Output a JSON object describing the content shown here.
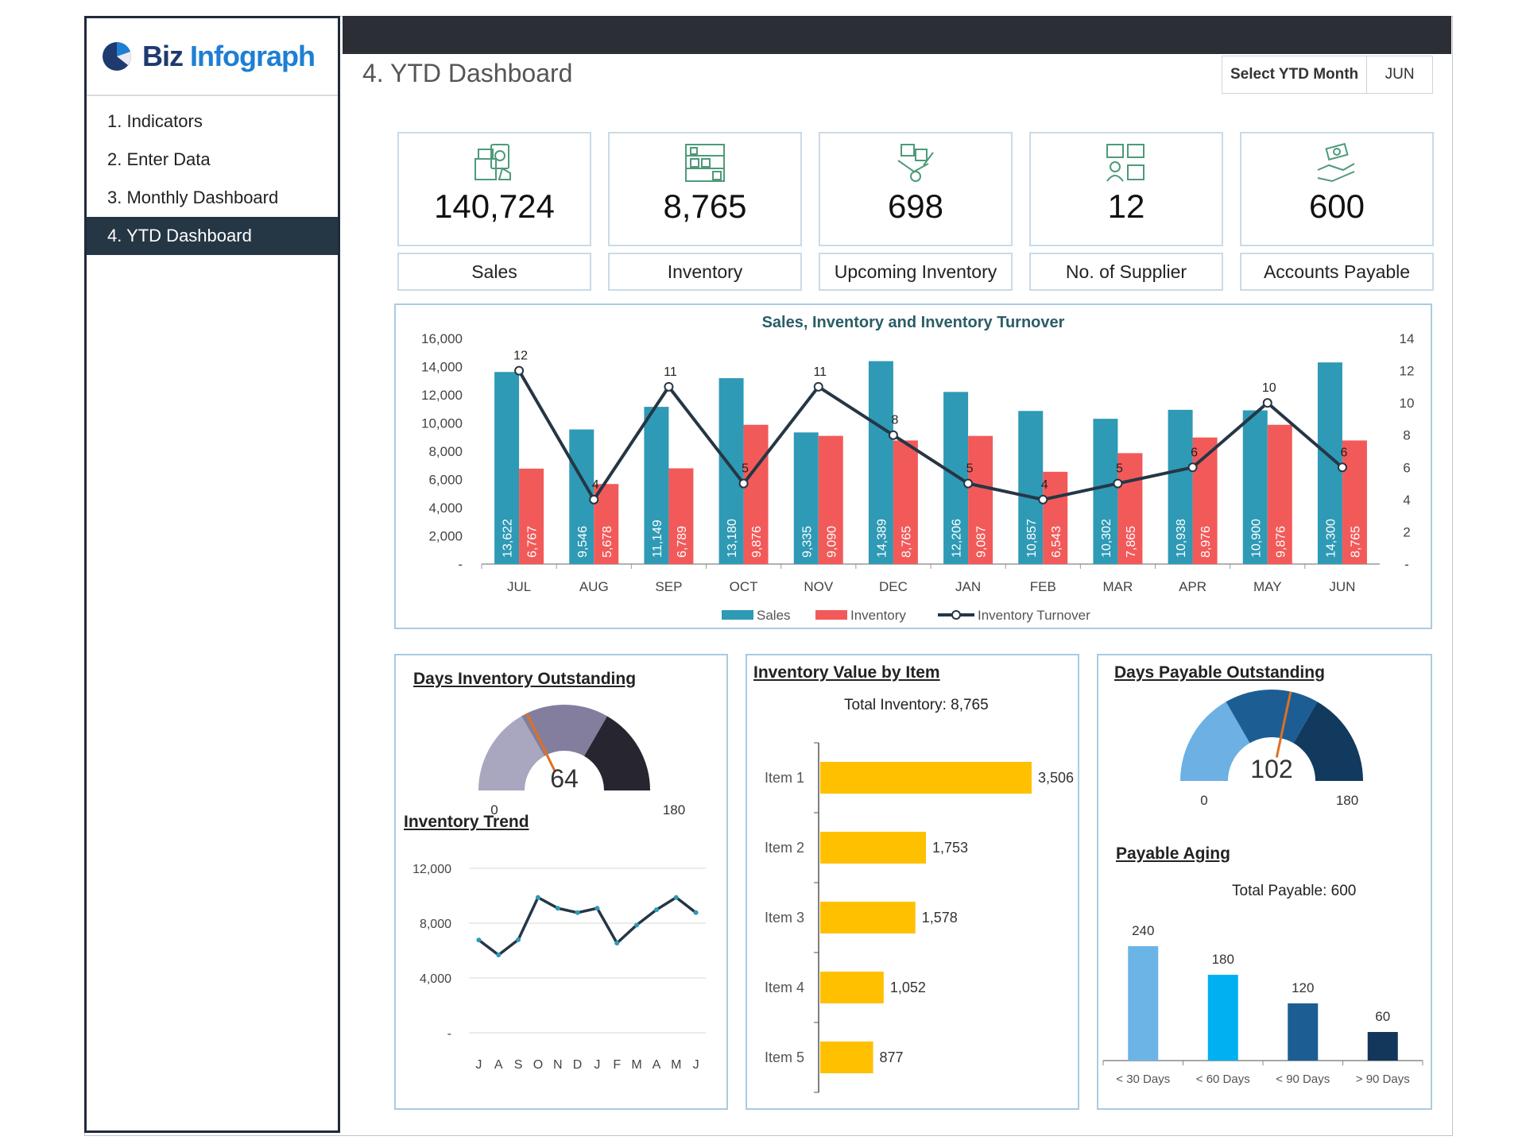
{
  "brand": {
    "name_part1": "Biz",
    "name_part2": "Infograph"
  },
  "sidebar": {
    "items": [
      {
        "label": "1. Indicators"
      },
      {
        "label": "2. Enter Data"
      },
      {
        "label": "3. Monthly Dashboard"
      },
      {
        "label": "4. YTD Dashboard"
      }
    ]
  },
  "header": {
    "title": "4. YTD Dashboard",
    "select_label": "Select YTD Month",
    "select_value": "JUN"
  },
  "kpis": [
    {
      "value": "140,724",
      "label": "Sales",
      "icon": "cash-register-icon"
    },
    {
      "value": "8,765",
      "label": "Inventory",
      "icon": "warehouse-shelf-icon"
    },
    {
      "value": "698",
      "label": "Upcoming Inventory",
      "icon": "hand-truck-icon"
    },
    {
      "value": "12",
      "label": "No. of Supplier",
      "icon": "supplier-boxes-icon"
    },
    {
      "value": "600",
      "label": "Accounts Payable",
      "icon": "hand-money-icon"
    }
  ],
  "colors": {
    "sales": "#2e9ab5",
    "inventory": "#f25a5a",
    "turnover": "#253645",
    "bar_item": "#ffc000",
    "gauge_dio": [
      "#a9a6c0",
      "#837e9e",
      "#27252f"
    ],
    "gauge_dpo": [
      "#6cb0e4",
      "#1c5e94",
      "#123a5e"
    ],
    "aging": [
      "#6ab4e6",
      "#00b0f0",
      "#1c5e94",
      "#13375a"
    ]
  },
  "chart_data": [
    {
      "type": "bar",
      "title": "Sales, Inventory and Inventory Turnover",
      "categories": [
        "JUL",
        "AUG",
        "SEP",
        "OCT",
        "NOV",
        "DEC",
        "JAN",
        "FEB",
        "MAR",
        "APR",
        "MAY",
        "JUN"
      ],
      "series": [
        {
          "name": "Sales",
          "values": [
            13622,
            9546,
            11149,
            13180,
            9335,
            14389,
            12206,
            10857,
            10302,
            10938,
            10900,
            14300
          ],
          "labels": [
            "13,622",
            "9,546",
            "11,149",
            "13,180",
            "9,335",
            "14,389",
            "12,206",
            "10,857",
            "10,302",
            "10,938",
            "10,900",
            "14,300"
          ]
        },
        {
          "name": "Inventory",
          "values": [
            6767,
            5678,
            6789,
            9876,
            9090,
            8765,
            9087,
            6543,
            7865,
            8976,
            9876,
            8765
          ],
          "labels": [
            "6,767",
            "5,678",
            "6,789",
            "9,876",
            "9,090",
            "8,765",
            "9,087",
            "6,543",
            "7,865",
            "8,976",
            "9,876",
            "8,765"
          ]
        },
        {
          "name": "Inventory Turnover",
          "type": "line",
          "axis": "right",
          "values": [
            12,
            4,
            11,
            5,
            11,
            8,
            5,
            4,
            5,
            6,
            10,
            6
          ]
        }
      ],
      "y_ticks": [
        "-",
        "2,000",
        "4,000",
        "6,000",
        "8,000",
        "10,000",
        "12,000",
        "14,000",
        "16,000"
      ],
      "ylim": [
        0,
        16000
      ],
      "y2_ticks": [
        "-",
        "2",
        "4",
        "6",
        "8",
        "10",
        "12",
        "14"
      ],
      "y2lim": [
        0,
        14
      ],
      "legend": "bottom"
    },
    {
      "type": "gauge",
      "title": "Days Inventory Outstanding",
      "value": 64,
      "min": 0,
      "max": 180,
      "value_label": "64",
      "min_label": "0",
      "max_label": "180"
    },
    {
      "type": "line",
      "title": "Inventory Trend",
      "categories": [
        "J",
        "A",
        "S",
        "O",
        "N",
        "D",
        "J",
        "F",
        "M",
        "A",
        "M",
        "J"
      ],
      "values": [
        6767,
        5678,
        6789,
        9876,
        9090,
        8765,
        9087,
        6543,
        7865,
        8976,
        9876,
        8765
      ],
      "y_ticks": [
        "-",
        "4,000",
        "8,000",
        "12,000"
      ],
      "ylim": [
        0,
        12000
      ]
    },
    {
      "type": "bar",
      "orientation": "horizontal",
      "title": "Inventory Value by Item",
      "subtitle": "Total Inventory: 8,765",
      "categories": [
        "Item 1",
        "Item 2",
        "Item 3",
        "Item 4",
        "Item 5"
      ],
      "values": [
        3506,
        1753,
        1578,
        1052,
        877
      ],
      "labels": [
        "3,506",
        "1,753",
        "1,578",
        "1,052",
        "877"
      ]
    },
    {
      "type": "gauge",
      "title": "Days Payable Outstanding",
      "value": 102,
      "min": 0,
      "max": 180,
      "value_label": "102",
      "min_label": "0",
      "max_label": "180"
    },
    {
      "type": "bar",
      "title": "Payable Aging",
      "subtitle": "Total Payable: 600",
      "categories": [
        "< 30 Days",
        "< 60 Days",
        "< 90 Days",
        "> 90 Days"
      ],
      "values": [
        240,
        180,
        120,
        60
      ],
      "labels": [
        "240",
        "180",
        "120",
        "60"
      ]
    }
  ]
}
